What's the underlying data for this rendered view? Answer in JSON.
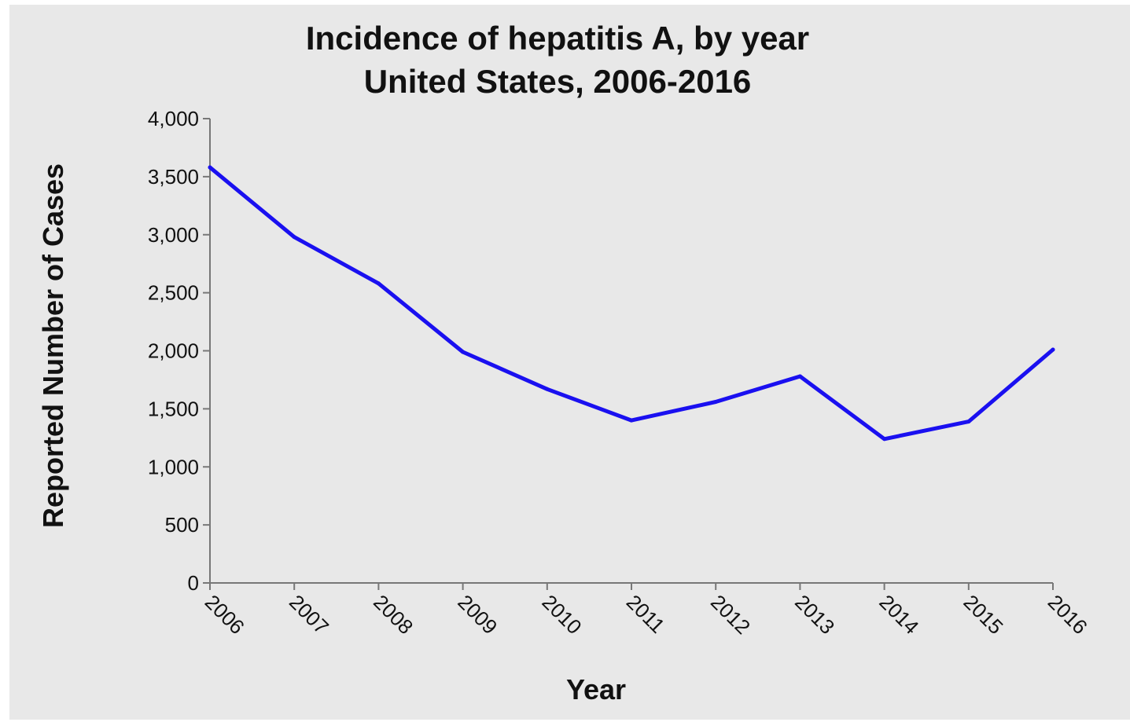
{
  "chart_data": {
    "type": "line",
    "title": "Incidence of hepatitis A, by year",
    "subtitle": "United States, 2006-2016",
    "xlabel": "Year",
    "ylabel": "Reported Number of Cases",
    "x": [
      "2006",
      "2007",
      "2008",
      "2009",
      "2010",
      "2011",
      "2012",
      "2013",
      "2014",
      "2015",
      "2016"
    ],
    "series": [
      {
        "values": [
          3580,
          2980,
          2580,
          1990,
          1670,
          1400,
          1560,
          1780,
          1240,
          1390,
          2010
        ],
        "color": "#1a10f0"
      }
    ],
    "ylim": [
      0,
      4000
    ],
    "yticks": [
      0,
      500,
      1000,
      1500,
      2000,
      2500,
      3000,
      3500,
      4000
    ],
    "ytick_labels": [
      "0",
      "500",
      "1,000",
      "1,500",
      "2,000",
      "2,500",
      "3,000",
      "3,500",
      "4,000"
    ],
    "grid": false,
    "background": "#e8e8e8"
  }
}
